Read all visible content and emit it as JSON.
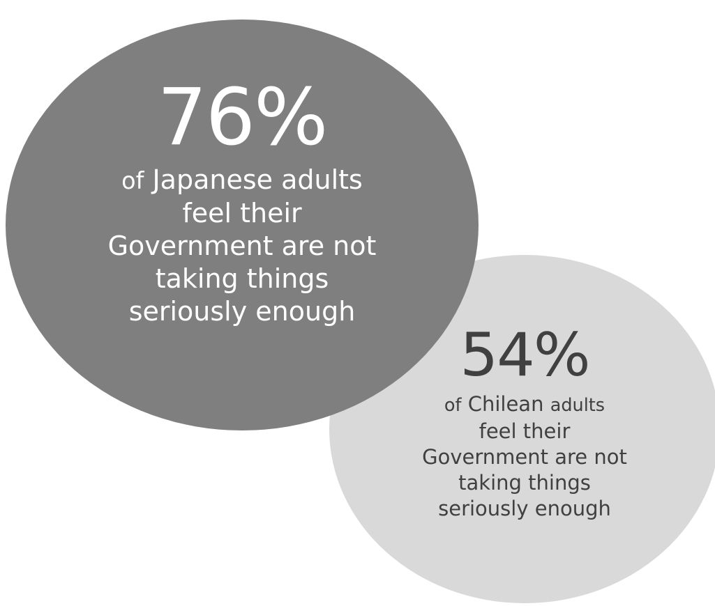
{
  "japan": {
    "percent": "76%",
    "prefix": "of",
    "line1_main": "Japanese adults",
    "line2": "feel their",
    "line3": "Government are not",
    "line4": "taking things",
    "line5": "seriously enough",
    "circle_color": "#7f7f7f",
    "text_color": "#ffffff"
  },
  "chile": {
    "percent": "54%",
    "prefix": "of",
    "line1_main": "Chilean",
    "line1_suffix": "adults",
    "line2": "feel their",
    "line3": "Government are not",
    "line4": "taking things",
    "line5": "seriously enough",
    "circle_color": "#d9d9d9",
    "text_color": "#404040"
  }
}
